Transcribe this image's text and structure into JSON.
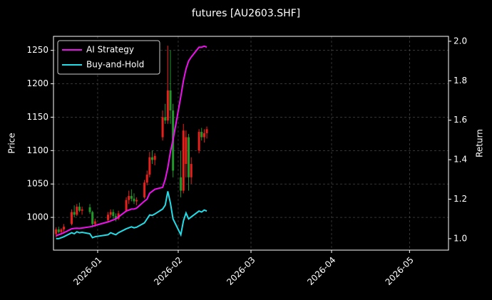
{
  "chart_data": {
    "type": "candlestick",
    "title": "futures [AU2603.SHF]",
    "ylabel": "Price",
    "y2label": "Return",
    "x": [
      "2025-12-16",
      "2025-12-17",
      "2025-12-18",
      "2025-12-19",
      "2025-12-22",
      "2025-12-23",
      "2025-12-24",
      "2025-12-25",
      "2025-12-26",
      "2025-12-29",
      "2025-12-30",
      "2025-12-31",
      "2026-01-05",
      "2026-01-06",
      "2026-01-07",
      "2026-01-08",
      "2026-01-09",
      "2026-01-12",
      "2026-01-13",
      "2026-01-14",
      "2026-01-15",
      "2026-01-16",
      "2026-01-19",
      "2026-01-20",
      "2026-01-21",
      "2026-01-22",
      "2026-01-23",
      "2026-01-26",
      "2026-01-27",
      "2026-01-28",
      "2026-01-29",
      "2026-01-30",
      "2026-02-02",
      "2026-02-03",
      "2026-02-04",
      "2026-02-05",
      "2026-02-06",
      "2026-02-09",
      "2026-02-10",
      "2026-02-11",
      "2026-02-12"
    ],
    "open": [
      975,
      982,
      978,
      982,
      990,
      1008,
      1004,
      1016,
      1010,
      1015,
      1008,
      990,
      996,
      1004,
      1008,
      1002,
      998,
      1010,
      1026,
      1032,
      1028,
      1024,
      1030,
      1052,
      1064,
      1090,
      1086,
      1120,
      1150,
      1145,
      1190,
      1160,
      1060,
      1040,
      1080,
      1120,
      1060,
      1100,
      1128,
      1120,
      1126
    ],
    "high": [
      985,
      986,
      984,
      990,
      1012,
      1018,
      1020,
      1022,
      1016,
      1020,
      1010,
      998,
      1008,
      1012,
      1012,
      1006,
      1010,
      1030,
      1040,
      1042,
      1036,
      1030,
      1056,
      1070,
      1098,
      1100,
      1096,
      1160,
      1170,
      1257,
      1250,
      1170,
      1100,
      1140,
      1130,
      1125,
      1090,
      1132,
      1134,
      1132,
      1136
    ],
    "low": [
      970,
      976,
      974,
      978,
      988,
      1000,
      1002,
      1008,
      1004,
      1005,
      985,
      986,
      992,
      1000,
      998,
      994,
      996,
      1008,
      1020,
      1024,
      1020,
      1018,
      1028,
      1048,
      1060,
      1080,
      1078,
      1115,
      1140,
      1140,
      1140,
      1060,
      1030,
      1036,
      1060,
      1040,
      1050,
      1096,
      1115,
      1112,
      1118
    ],
    "close": [
      982,
      978,
      982,
      986,
      1008,
      1004,
      1016,
      1010,
      1012,
      1008,
      990,
      994,
      1004,
      1008,
      1002,
      998,
      1006,
      1026,
      1032,
      1028,
      1024,
      1026,
      1052,
      1064,
      1090,
      1086,
      1092,
      1150,
      1145,
      1190,
      1160,
      1070,
      1040,
      1130,
      1120,
      1060,
      1080,
      1128,
      1120,
      1126,
      1132
    ],
    "up_color": "#e8201c",
    "down_color": "#1f9a2a",
    "series": [
      {
        "name": "AI Strategy",
        "color": "#ee11ee",
        "axis": "y2",
        "values": [
          1.015,
          1.02,
          1.025,
          1.03,
          1.05,
          1.052,
          1.053,
          1.052,
          1.054,
          1.06,
          1.063,
          1.067,
          1.085,
          1.09,
          1.095,
          1.1,
          1.11,
          1.14,
          1.145,
          1.15,
          1.15,
          1.155,
          1.19,
          1.2,
          1.23,
          1.24,
          1.25,
          1.26,
          1.3,
          1.36,
          1.44,
          1.5,
          1.72,
          1.8,
          1.86,
          1.9,
          1.92,
          1.97,
          1.97,
          1.975,
          1.97
        ]
      },
      {
        "name": "Buy-and-Hold",
        "color": "#22dde8",
        "axis": "y2",
        "values": [
          1.0,
          1.0,
          1.005,
          1.01,
          1.03,
          1.025,
          1.035,
          1.03,
          1.032,
          1.025,
          1.005,
          1.01,
          1.02,
          1.03,
          1.025,
          1.02,
          1.03,
          1.05,
          1.055,
          1.06,
          1.055,
          1.058,
          1.08,
          1.1,
          1.12,
          1.118,
          1.125,
          1.15,
          1.17,
          1.24,
          1.18,
          1.1,
          1.02,
          1.09,
          1.13,
          1.1,
          1.11,
          1.14,
          1.135,
          1.145,
          1.14
        ]
      }
    ],
    "xlim": [
      "2025-12-15",
      "2026-05-16"
    ],
    "xticks": [
      {
        "value": "2026-01-01",
        "label": "2026-01"
      },
      {
        "value": "2026-02-01",
        "label": "2026-02"
      },
      {
        "value": "2026-03-01",
        "label": "2026-03"
      },
      {
        "value": "2026-04-01",
        "label": "2026-04"
      },
      {
        "value": "2026-05-01",
        "label": "2026-05"
      }
    ],
    "ylim": [
      951,
      1271
    ],
    "yticks": [
      1000,
      1050,
      1100,
      1150,
      1200,
      1250
    ],
    "y2lim": [
      0.942,
      2.025
    ],
    "y2ticks": [
      {
        "value": 1,
        "label": "1.0"
      },
      {
        "value": 1.2,
        "label": "1.2"
      },
      {
        "value": 1.4,
        "label": "1.4"
      },
      {
        "value": 1.6,
        "label": "1.6"
      },
      {
        "value": 1.8,
        "label": "1.8"
      },
      {
        "value": 2,
        "label": "2.0"
      }
    ],
    "grid": true,
    "legend": "upper left"
  }
}
